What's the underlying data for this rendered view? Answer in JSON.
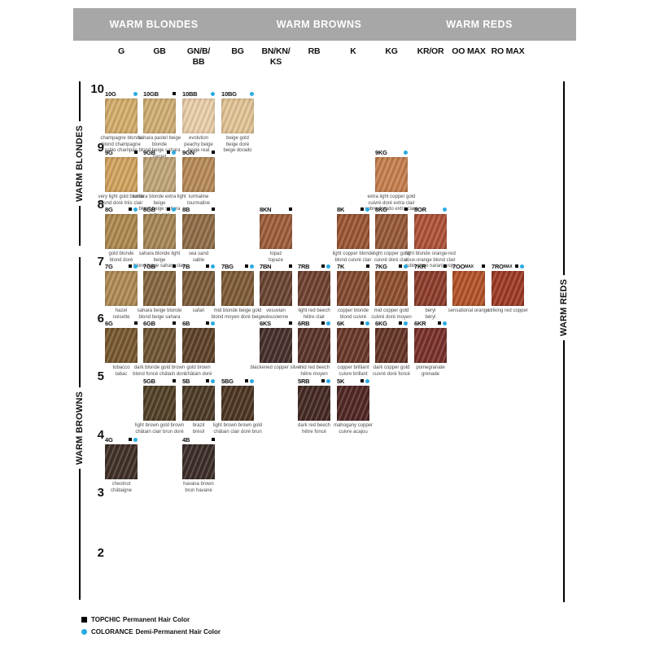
{
  "header": {
    "bar_color": "#a7a7a8",
    "sections": [
      {
        "label": "WARM BLONDES"
      },
      {
        "label": "WARM BROWNS"
      },
      {
        "label": "WARM REDS"
      }
    ]
  },
  "columns": [
    {
      "id": "G",
      "lines": [
        "G"
      ]
    },
    {
      "id": "GB",
      "lines": [
        "GB"
      ]
    },
    {
      "id": "GN/B/BB",
      "lines": [
        "GN/B/",
        "BB"
      ]
    },
    {
      "id": "BG",
      "lines": [
        "BG"
      ]
    },
    {
      "id": "BN/KN/KS",
      "lines": [
        "BN/KN/",
        "KS"
      ]
    },
    {
      "id": "RB",
      "lines": [
        "RB"
      ]
    },
    {
      "id": "K",
      "lines": [
        "K"
      ]
    },
    {
      "id": "KG",
      "lines": [
        "KG"
      ]
    },
    {
      "id": "KR/OR",
      "lines": [
        "KR/OR"
      ]
    },
    {
      "id": "OO MAX",
      "lines": [
        "OO MAX"
      ]
    },
    {
      "id": "RO MAX",
      "lines": [
        "RO MAX"
      ]
    }
  ],
  "levels": [
    "10",
    "9",
    "8",
    "7",
    "6",
    "5",
    "4",
    "3",
    "2"
  ],
  "side_labels": {
    "left_top": "WARM BLONDES",
    "left_bottom": "WARM BROWNS",
    "right": "WARM REDS"
  },
  "swatches": [
    {
      "code": "10G",
      "suffix": "",
      "level": "10",
      "column": "G",
      "topchic": false,
      "colorance": true,
      "color": "#d4ad6c",
      "caption": [
        "champagne blonde",
        "blond champagne",
        "rubio champán"
      ]
    },
    {
      "code": "10GB",
      "suffix": "",
      "level": "10",
      "column": "GB",
      "topchic": true,
      "colorance": false,
      "color": "#d0ae74",
      "caption": [
        "sahara pastel beige blonde",
        "blond beige sahara pastel"
      ]
    },
    {
      "code": "10BB",
      "suffix": "",
      "level": "10",
      "column": "GN/B/BB",
      "topchic": false,
      "colorance": true,
      "color": "#eaceaa",
      "caption": [
        "evolution",
        "peachy beige",
        "beige real"
      ]
    },
    {
      "code": "10BG",
      "suffix": "",
      "level": "10",
      "column": "BG",
      "topchic": false,
      "colorance": true,
      "color": "#e2c496",
      "caption": [
        "beige gold",
        "beige doré",
        "beige dorado"
      ]
    },
    {
      "code": "9G",
      "suffix": "",
      "level": "9",
      "column": "G",
      "topchic": true,
      "colorance": false,
      "color": "#d2a35e",
      "caption": [
        "very light gold blonde",
        "blond doré très clair"
      ]
    },
    {
      "code": "9GB",
      "suffix": "",
      "level": "9",
      "column": "GB",
      "topchic": true,
      "colorance": true,
      "color": "#c0a578",
      "caption": [
        "sahara blonde extra light beige",
        "blond beige sahara extra clair"
      ]
    },
    {
      "code": "9GN",
      "suffix": "",
      "level": "9",
      "column": "GN/B/BB",
      "topchic": true,
      "colorance": false,
      "color": "#b78a58",
      "caption": [
        "turmaline",
        "tourmaline"
      ]
    },
    {
      "code": "9KG",
      "suffix": "",
      "level": "9",
      "column": "KG",
      "topchic": false,
      "colorance": true,
      "color": "#c67f4e",
      "caption": [
        "extra light copper gold",
        "cuivré doré extra clair",
        "cobre dorado extra claro"
      ]
    },
    {
      "code": "8G",
      "suffix": "",
      "level": "8",
      "column": "G",
      "topchic": true,
      "colorance": true,
      "color": "#ae8950",
      "caption": [
        "gold blonde",
        "blond doré"
      ]
    },
    {
      "code": "8GB",
      "suffix": "",
      "level": "8",
      "column": "GB",
      "topchic": true,
      "colorance": true,
      "color": "#a78755",
      "caption": [
        "sahara blonde light beige",
        "blond beige sahara clair"
      ]
    },
    {
      "code": "8B",
      "suffix": "",
      "level": "8",
      "column": "GN/B/BB",
      "topchic": true,
      "colorance": false,
      "color": "#906d47",
      "caption": [
        "sea sand",
        "sable"
      ]
    },
    {
      "code": "8KN",
      "suffix": "",
      "level": "8",
      "column": "BN/KN/KS",
      "topchic": true,
      "colorance": false,
      "color": "#9d5e3b",
      "caption": [
        "topaz",
        "topaze"
      ]
    },
    {
      "code": "8K",
      "suffix": "",
      "level": "8",
      "column": "K",
      "topchic": true,
      "colorance": true,
      "color": "#9b5634",
      "caption": [
        "light copper blonde",
        "blond cuivré clair"
      ]
    },
    {
      "code": "8KG",
      "suffix": "",
      "level": "8",
      "column": "KG",
      "topchic": true,
      "colorance": false,
      "color": "#975937",
      "caption": [
        "light copper gold",
        "cuivré doré clair"
      ]
    },
    {
      "code": "8OR",
      "suffix": "",
      "level": "8",
      "column": "KR/OR",
      "topchic": false,
      "colorance": true,
      "color": "#ae5238",
      "caption": [
        "light blonde orange-red",
        "roux-orange blond clair",
        "rubio claro naranja rojo"
      ]
    },
    {
      "code": "7G",
      "suffix": "",
      "level": "7",
      "column": "G",
      "topchic": true,
      "colorance": true,
      "color": "#af8b55",
      "caption": [
        "hazel",
        "noisette"
      ]
    },
    {
      "code": "7GB",
      "suffix": "",
      "level": "7",
      "column": "GB",
      "topchic": true,
      "colorance": false,
      "color": "#866740",
      "caption": [
        "sahara beige blonde",
        "blond beige sahara"
      ]
    },
    {
      "code": "7B",
      "suffix": "",
      "level": "7",
      "column": "GN/B/BB",
      "topchic": true,
      "colorance": true,
      "color": "#7c5d3b",
      "caption": [
        "safari"
      ]
    },
    {
      "code": "7BG",
      "suffix": "",
      "level": "7",
      "column": "BG",
      "topchic": true,
      "colorance": true,
      "color": "#7e5b37",
      "caption": [
        "mid blonde beige gold",
        "blond moyen doré beige"
      ]
    },
    {
      "code": "7BN",
      "suffix": "",
      "level": "7",
      "column": "BN/KN/KS",
      "topchic": true,
      "colorance": false,
      "color": "#6a4533",
      "caption": [
        "vesuvian",
        "vésuvienne"
      ]
    },
    {
      "code": "7RB",
      "suffix": "",
      "level": "7",
      "column": "RB",
      "topchic": true,
      "colorance": true,
      "color": "#6f4231",
      "caption": [
        "light red beech",
        "hêtre clair"
      ]
    },
    {
      "code": "7K",
      "suffix": "",
      "level": "7",
      "column": "K",
      "topchic": true,
      "colorance": false,
      "color": "#834a30",
      "caption": [
        "copper blonde",
        "blond cuivré"
      ]
    },
    {
      "code": "7KG",
      "suffix": "",
      "level": "7",
      "column": "KG",
      "topchic": true,
      "colorance": true,
      "color": "#8e4f2e",
      "caption": [
        "mid copper gold",
        "cuivré doré moyen"
      ]
    },
    {
      "code": "7KR",
      "suffix": "",
      "level": "7",
      "column": "KR/OR",
      "topchic": true,
      "colorance": false,
      "color": "#8d3d2c",
      "caption": [
        "beryl",
        "béryl"
      ]
    },
    {
      "code": "7OO",
      "suffix": "MAX",
      "level": "7",
      "column": "OO MAX",
      "topchic": true,
      "colorance": false,
      "color": "#b35328",
      "caption": [
        "sensational orange"
      ]
    },
    {
      "code": "7RO",
      "suffix": "MAX",
      "level": "7",
      "column": "RO MAX",
      "topchic": true,
      "colorance": true,
      "color": "#9d3b26",
      "caption": [
        "striking red copper"
      ]
    },
    {
      "code": "6G",
      "suffix": "",
      "level": "6",
      "column": "G",
      "topchic": true,
      "colorance": false,
      "color": "#785930",
      "caption": [
        "tobacco",
        "tabac"
      ]
    },
    {
      "code": "6GB",
      "suffix": "",
      "level": "6",
      "column": "GB",
      "topchic": true,
      "colorance": false,
      "color": "#6f5534",
      "caption": [
        "dark blonde gold brown",
        "blond foncé châtain doré"
      ]
    },
    {
      "code": "6B",
      "suffix": "",
      "level": "6",
      "column": "GN/B/BB",
      "topchic": true,
      "colorance": true,
      "color": "#5e4229",
      "caption": [
        "gold brown",
        "châtain doré"
      ]
    },
    {
      "code": "6KS",
      "suffix": "",
      "level": "6",
      "column": "BN/KN/KS",
      "topchic": true,
      "colorance": false,
      "color": "#47302d",
      "caption": [
        "blackened copper silver"
      ]
    },
    {
      "code": "6RB",
      "suffix": "",
      "level": "6",
      "column": "RB",
      "topchic": true,
      "colorance": true,
      "color": "#5b342b",
      "caption": [
        "mid red beech",
        "hêtre moyen"
      ]
    },
    {
      "code": "6K",
      "suffix": "",
      "level": "6",
      "column": "K",
      "topchic": true,
      "colorance": true,
      "color": "#6a392a",
      "caption": [
        "copper brilliant",
        "cuivre brillant"
      ]
    },
    {
      "code": "6KG",
      "suffix": "",
      "level": "6",
      "column": "KG",
      "topchic": true,
      "colorance": true,
      "color": "#663628",
      "caption": [
        "dark copper gold",
        "cuivré doré foncé"
      ]
    },
    {
      "code": "6KR",
      "suffix": "",
      "level": "6",
      "column": "KR/OR",
      "topchic": true,
      "colorance": true,
      "color": "#7a312b",
      "caption": [
        "pomegranate",
        "grenade"
      ]
    },
    {
      "code": "5GB",
      "suffix": "",
      "level": "5",
      "column": "GB",
      "topchic": true,
      "colorance": false,
      "color": "#524128",
      "caption": [
        "light brown gold brown",
        "châtain clair brun doré"
      ]
    },
    {
      "code": "5B",
      "suffix": "",
      "level": "5",
      "column": "GN/B/BB",
      "topchic": true,
      "colorance": true,
      "color": "#4d3b27",
      "caption": [
        "brazil",
        "brésil"
      ]
    },
    {
      "code": "5BG",
      "suffix": "",
      "level": "5",
      "column": "BG",
      "topchic": true,
      "colorance": true,
      "color": "#4d3623",
      "caption": [
        "light brown brown gold",
        "châtain clair doré brun"
      ]
    },
    {
      "code": "5RB",
      "suffix": "",
      "level": "5",
      "column": "RB",
      "topchic": true,
      "colorance": true,
      "color": "#462a24",
      "caption": [
        "dark red beech",
        "hêtre foncé"
      ]
    },
    {
      "code": "5K",
      "suffix": "",
      "level": "5",
      "column": "K",
      "topchic": true,
      "colorance": true,
      "color": "#512825",
      "caption": [
        "mahogany copper",
        "cuivre acajou"
      ]
    },
    {
      "code": "4G",
      "suffix": "",
      "level": "4",
      "column": "G",
      "topchic": true,
      "colorance": true,
      "color": "#413128",
      "caption": [
        "chestnut",
        "châtaigne"
      ]
    },
    {
      "code": "4B",
      "suffix": "",
      "level": "4",
      "column": "GN/B/BB",
      "topchic": true,
      "colorance": false,
      "color": "#3d2e29",
      "caption": [
        "havana brown",
        "brun havane"
      ]
    }
  ],
  "legend": [
    {
      "symbol": "square",
      "brand": "TOPCHIC",
      "text": "Permanent Hair Color",
      "color": "#000000"
    },
    {
      "symbol": "dot",
      "brand": "COLORANCE",
      "text": "Demi-Permanent Hair Color",
      "color": "#29abe2"
    }
  ],
  "colors": {
    "accent_cyan": "#29abe2",
    "header_gray": "#a7a7a8"
  }
}
